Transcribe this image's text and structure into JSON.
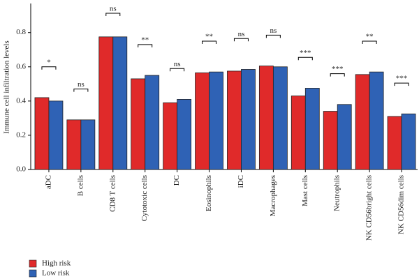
{
  "chart_data": {
    "type": "bar",
    "y_label": "Immune cell infiltration levels",
    "categories": [
      "aDC",
      "B cells",
      "CD8 T cells",
      "Cytotoxic cells",
      "DC",
      "Eosinophils",
      "iDC",
      "Macrophages",
      "Mast cells",
      "Neutrophils",
      "NK CD56bright cells",
      "NK CD56dim cells"
    ],
    "series": [
      {
        "name": "High risk",
        "color": "#e02a2a",
        "values": [
          0.42,
          0.29,
          0.775,
          0.53,
          0.39,
          0.565,
          0.575,
          0.605,
          0.43,
          0.34,
          0.555,
          0.31
        ]
      },
      {
        "name": "Low risk",
        "color": "#2f62b5",
        "values": [
          0.4,
          0.29,
          0.775,
          0.55,
          0.41,
          0.57,
          0.585,
          0.6,
          0.475,
          0.38,
          0.57,
          0.325
        ]
      }
    ],
    "annotations": [
      "*",
      "ns",
      "ns",
      "**",
      "ns",
      "**",
      "ns",
      "ns",
      "***",
      "***",
      "**",
      "***"
    ],
    "ylim": [
      0,
      0.97
    ],
    "yticks": [
      {
        "value": 0,
        "label": "0.0"
      },
      0.2,
      0.4,
      0.6,
      0.8
    ],
    "legend": "bottom-left"
  }
}
